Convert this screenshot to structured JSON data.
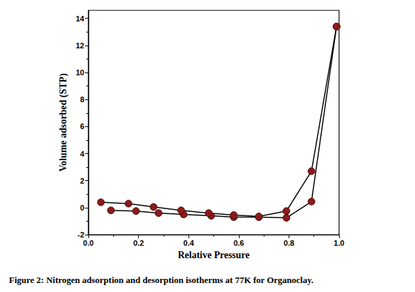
{
  "chart_data": {
    "type": "line",
    "title": "Figure 2: Nitrogen adsorption and desorption isotherms at 77K for Organoclay.",
    "x_label": "Relative Pressure",
    "y_label": "Volume adsorbed (STP)",
    "xlim": [
      0,
      1
    ],
    "xticks": [
      {
        "value": 0,
        "label": "0.0"
      },
      0.2,
      0.4,
      0.6,
      0.8,
      {
        "value": 1,
        "label": "1.0"
      }
    ],
    "ylim": [
      -2,
      14.6
    ],
    "yticks": [
      -2,
      0,
      2,
      4,
      6,
      8,
      10,
      12,
      14
    ],
    "grid": false,
    "marker": "circle",
    "series": [
      {
        "color": "#8b1a1a",
        "x": [
          0.09,
          0.19,
          0.28,
          0.38,
          0.49,
          0.58,
          0.68,
          0.79,
          0.89,
          0.99
        ],
        "values": [
          -0.2,
          -0.25,
          -0.4,
          -0.5,
          -0.6,
          -0.7,
          -0.7,
          -0.75,
          0.45,
          13.4
        ]
      },
      {
        "color": "#8b1a1a",
        "x": [
          0.99,
          0.89,
          0.79,
          0.68,
          0.58,
          0.48,
          0.37,
          0.26,
          0.16,
          0.05
        ],
        "values": [
          13.4,
          2.7,
          -0.25,
          -0.65,
          -0.55,
          -0.4,
          -0.2,
          0.05,
          0.3,
          0.4
        ]
      }
    ]
  }
}
